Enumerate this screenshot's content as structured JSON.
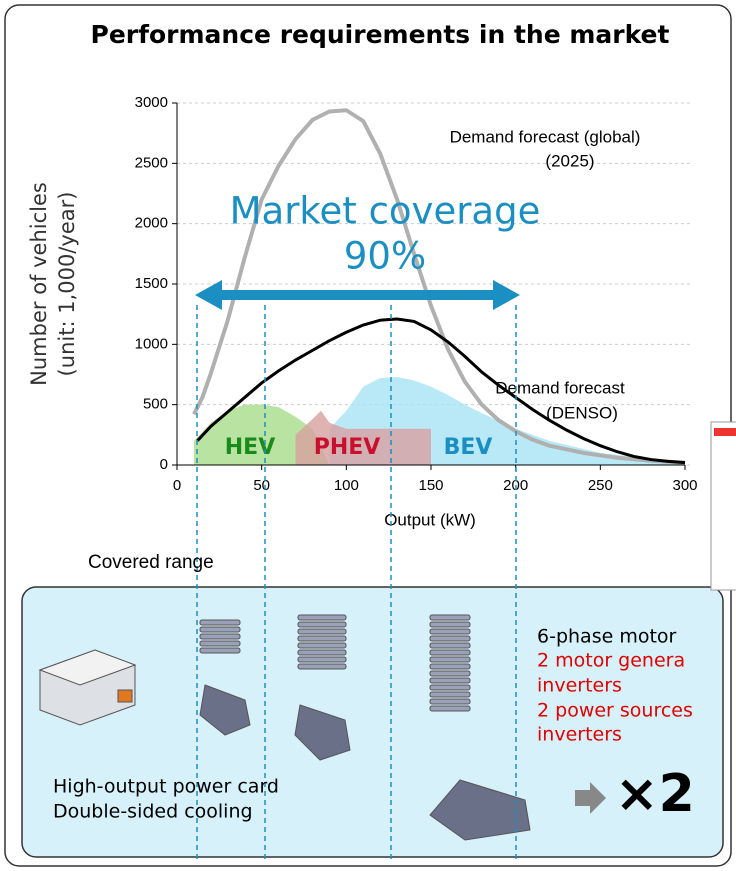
{
  "chart_data": {
    "type": "area-line",
    "title": "Performance requirements in the market",
    "y_label": [
      "Number of vehicles",
      "(unit: 1,000/year)"
    ],
    "x_label": "Output (kW)",
    "xlim": [
      0,
      300
    ],
    "xticks": [
      0,
      50,
      100,
      150,
      200,
      250,
      300
    ],
    "ylim": [
      0,
      3000
    ],
    "yticks": [
      0,
      500,
      1000,
      1500,
      2000,
      2500,
      3000
    ],
    "grid": true,
    "annotations": [
      "Market coverage",
      "90%"
    ],
    "series": [
      {
        "name": "BEV",
        "kind": "area",
        "color": "#a8e4f5",
        "x": [
          90,
          100,
          110,
          120,
          130,
          140,
          150,
          160,
          170,
          180,
          200,
          220,
          250,
          300
        ],
        "values": [
          300,
          450,
          650,
          720,
          730,
          700,
          650,
          580,
          500,
          430,
          300,
          200,
          100,
          20
        ]
      },
      {
        "name": "HEV",
        "kind": "area",
        "color": "#a8dc8a",
        "x": [
          10,
          20,
          30,
          40,
          50,
          60,
          70,
          80,
          90
        ],
        "values": [
          200,
          350,
          450,
          500,
          500,
          480,
          400,
          300,
          0
        ]
      },
      {
        "name": "PHEV",
        "kind": "area",
        "color": "#d8a0a0",
        "x": [
          70,
          80,
          85,
          90,
          100,
          150
        ],
        "values": [
          250,
          380,
          450,
          350,
          300,
          300
        ]
      },
      {
        "label": [
          "Demand forecast (global)",
          "(2025)"
        ],
        "kind": "line",
        "color": "#b0b0b0",
        "x": [
          10,
          15,
          20,
          30,
          40,
          50,
          60,
          70,
          80,
          90,
          100,
          110,
          120,
          130,
          140,
          150,
          160,
          170,
          180,
          190,
          200,
          210,
          220,
          240,
          260,
          280,
          300
        ],
        "values": [
          420,
          560,
          760,
          1200,
          1720,
          2200,
          2480,
          2700,
          2860,
          2930,
          2940,
          2850,
          2580,
          2200,
          1750,
          1320,
          960,
          690,
          500,
          370,
          280,
          210,
          160,
          100,
          60,
          35,
          20
        ]
      },
      {
        "label": [
          "Demand forecast",
          "(DENSO)"
        ],
        "kind": "line",
        "color": "#000000",
        "x": [
          12,
          20,
          30,
          40,
          50,
          60,
          70,
          80,
          90,
          100,
          110,
          120,
          130,
          140,
          150,
          160,
          170,
          180,
          190,
          200,
          210,
          220,
          230,
          240,
          250,
          260,
          270,
          280,
          290,
          300
        ],
        "values": [
          200,
          320,
          440,
          560,
          680,
          780,
          870,
          950,
          1030,
          1100,
          1160,
          1200,
          1210,
          1190,
          1120,
          1020,
          900,
          770,
          660,
          560,
          460,
          370,
          290,
          220,
          160,
          110,
          70,
          45,
          30,
          20
        ]
      }
    ]
  },
  "panel": {
    "heading": "Covered range",
    "motor": "6-phase motor",
    "red_lines": [
      "2 motor genera",
      "inverters",
      "2 power sources",
      "inverters"
    ],
    "card_lines": [
      "High-output power card",
      "Double-sided cooling"
    ],
    "multiplier": "×2"
  }
}
